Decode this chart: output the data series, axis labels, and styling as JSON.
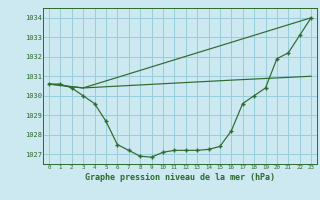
{
  "title": "Graphe pression niveau de la mer (hPa)",
  "bg_color": "#cce8f0",
  "grid_color": "#99ccd9",
  "line_color": "#2d6a2d",
  "ylim": [
    1026.5,
    1034.5
  ],
  "xlim": [
    -0.5,
    23.5
  ],
  "yticks": [
    1027,
    1028,
    1029,
    1030,
    1031,
    1032,
    1033,
    1034
  ],
  "xticks": [
    0,
    1,
    2,
    3,
    4,
    5,
    6,
    7,
    8,
    9,
    10,
    11,
    12,
    13,
    14,
    15,
    16,
    17,
    18,
    19,
    20,
    21,
    22,
    23
  ],
  "series1_x": [
    0,
    1,
    2,
    3,
    4,
    5,
    6,
    7,
    8,
    9,
    10,
    11,
    12,
    13,
    14,
    15,
    16,
    17,
    18,
    19,
    20,
    21,
    22,
    23
  ],
  "series1_y": [
    1030.6,
    1030.6,
    1030.4,
    1030.0,
    1029.6,
    1028.7,
    1027.5,
    1027.2,
    1026.9,
    1026.85,
    1027.1,
    1027.2,
    1027.2,
    1027.2,
    1027.25,
    1027.4,
    1028.2,
    1029.6,
    1030.0,
    1030.4,
    1031.9,
    1032.2,
    1033.1,
    1034.0
  ],
  "series2_x": [
    0,
    3,
    16,
    23
  ],
  "series2_y": [
    1030.6,
    1030.4,
    1030.8,
    1031.0
  ],
  "series3_x": [
    0,
    3,
    23
  ],
  "series3_y": [
    1030.6,
    1030.4,
    1034.0
  ]
}
